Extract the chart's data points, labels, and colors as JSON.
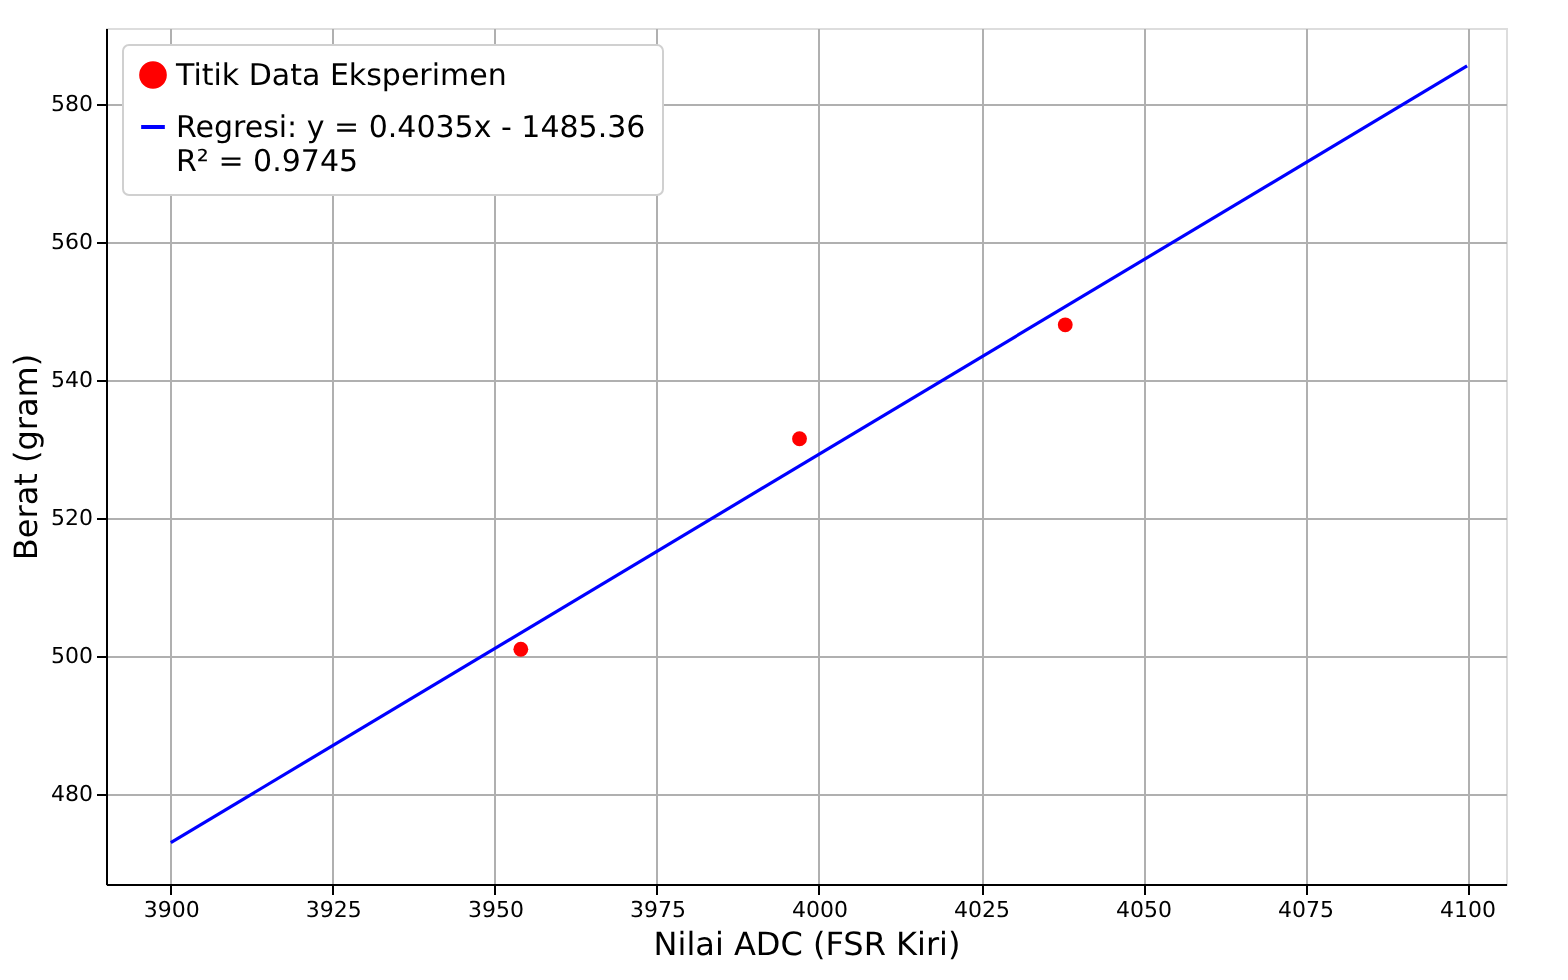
{
  "chart_data": {
    "type": "scatter",
    "xlabel": "Nilai ADC (FSR Kiri)",
    "ylabel": "Berat (gram)",
    "xlim": [
      3890,
      4106
    ],
    "ylim": [
      467,
      591
    ],
    "xticks": [
      3900,
      3925,
      3950,
      3975,
      4000,
      4025,
      4050,
      4075,
      4100
    ],
    "yticks": [
      480,
      500,
      520,
      540,
      560,
      580
    ],
    "grid": true,
    "legend": "top left",
    "series": [
      {
        "name": "Titik Data Eksperimen",
        "color": "#ff0000",
        "marker": "circle",
        "x": [
          3954,
          3997,
          4038
        ],
        "values": [
          501,
          531.5,
          548
        ]
      },
      {
        "name": "Regresi: y = 0.4035x - 1485.36\nR² = 0.9745",
        "type": "line",
        "color": "#0000ff",
        "line_style": "solid",
        "x": [
          3900,
          4100
        ],
        "values": [
          473,
          585.5
        ]
      }
    ]
  }
}
